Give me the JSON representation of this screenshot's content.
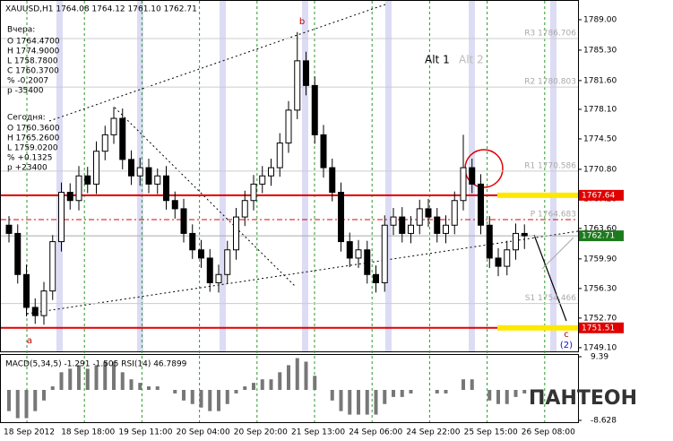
{
  "chart_data": {
    "type": "candlestick",
    "info": {
      "header": "XAUUSD,H1  1764.08 1764.12 1761.10 1762.71",
      "yesterday_label": "Вчера:",
      "yesterday": [
        "O 1764.4700",
        "H 1774.9000",
        "L 1758.7800",
        "C 1760.3700",
        "% -0.2007",
        "p -35400"
      ],
      "today_label": "Сегодня:",
      "today": [
        "O 1760.3600",
        "H 1765.2600",
        "L 1759.0200",
        "% +0.1325",
        "p +23400"
      ]
    },
    "ylim": [
      1748.65,
      1791.4
    ],
    "yticks": [
      {
        "value": 1789.0,
        "label": "1789.00"
      },
      {
        "value": 1785.3,
        "label": "1785.30"
      },
      {
        "value": 1781.6,
        "label": "1781.60"
      },
      {
        "value": 1778.1,
        "label": "1778.10"
      },
      {
        "value": 1774.5,
        "label": "1774.50"
      },
      {
        "value": 1770.8,
        "label": "1770.80"
      },
      {
        "value": 1767.2,
        "label": "1767.20"
      },
      {
        "value": 1763.6,
        "label": "1763.60"
      },
      {
        "value": 1759.9,
        "label": "1759.90"
      },
      {
        "value": 1756.3,
        "label": "1756.30"
      },
      {
        "value": 1752.7,
        "label": "1752.70"
      },
      {
        "value": 1749.1,
        "label": "1749.10"
      }
    ],
    "levels": [
      {
        "value": 1767.64,
        "label": "1767.64",
        "color": "#e00000"
      },
      {
        "value": 1762.71,
        "label": "1762.71",
        "color": "#1e7a1e"
      },
      {
        "value": 1751.51,
        "label": "1751.51",
        "color": "#e00000"
      }
    ],
    "pivots": [
      {
        "name": "R3",
        "value": 1786.706,
        "label": "R3 1786.706"
      },
      {
        "name": "R2",
        "value": 1780.803,
        "label": "R2 1780.803"
      },
      {
        "name": "R1",
        "value": 1770.586,
        "label": "R1 1770.586"
      },
      {
        "name": "P",
        "value": 1764.683,
        "label": "P 1764.683"
      },
      {
        "name": "S1",
        "value": 1754.466,
        "label": "S1 1754.466"
      }
    ],
    "annotations": {
      "alt1": "Alt 1",
      "alt2": "Alt 2",
      "a": "a",
      "b": "b",
      "c": "c",
      "wave": "(2)"
    },
    "xticks": [
      "18 Sep 2012",
      "18 Sep 18:00",
      "19 Sep 11:00",
      "20 Sep 04:00",
      "20 Sep 20:00",
      "21 Sep 13:00",
      "24 Sep 06:00",
      "24 Sep 22:00",
      "25 Sep 15:00",
      "26 Sep 08:00"
    ],
    "open": [
      1764,
      1763,
      1758,
      1754,
      1753,
      1756,
      1762,
      1768,
      1767,
      1770,
      1769,
      1773,
      1775,
      1777,
      1772,
      1770,
      1771,
      1769,
      1770,
      1767,
      1766,
      1763,
      1761,
      1760,
      1757,
      1758,
      1761,
      1765,
      1767,
      1769,
      1770,
      1771,
      1774,
      1778,
      1784,
      1781,
      1775,
      1771,
      1768,
      1762,
      1760,
      1761,
      1758,
      1757,
      1764,
      1765,
      1763,
      1764,
      1766,
      1765,
      1763,
      1764,
      1767,
      1771,
      1769,
      1764,
      1760,
      1759,
      1761,
      1763
    ],
    "high": [
      1765.1,
      1764.1,
      1759.2,
      1755.1,
      1757.1,
      1762.8,
      1769.2,
      1769.1,
      1771.2,
      1771.1,
      1774.2,
      1776.1,
      1778.4,
      1778.2,
      1773.1,
      1772.2,
      1772.1,
      1770.9,
      1771.2,
      1768.1,
      1767.2,
      1764.1,
      1762.2,
      1761.1,
      1759.2,
      1762.1,
      1766.1,
      1768.2,
      1770.1,
      1771.2,
      1772.1,
      1775.2,
      1779.1,
      1787.5,
      1785.1,
      1782.1,
      1776.2,
      1772.1,
      1769.2,
      1763.1,
      1762.2,
      1762.1,
      1759.1,
      1765.2,
      1766.1,
      1766.2,
      1765.1,
      1767.1,
      1767.2,
      1766.1,
      1765.2,
      1768.1,
      1775.0,
      1772.1,
      1770.2,
      1765.1,
      1761.2,
      1762.1,
      1764.2,
      1764.1
    ],
    "low": [
      1761.9,
      1756.9,
      1752.9,
      1752.0,
      1751.9,
      1754.9,
      1760.8,
      1765.9,
      1765.8,
      1767.9,
      1767.8,
      1771.9,
      1773.9,
      1770.8,
      1768.9,
      1768.8,
      1767.9,
      1767.8,
      1765.9,
      1764.8,
      1761.9,
      1759.9,
      1758.8,
      1755.9,
      1755.8,
      1756.9,
      1759.8,
      1763.9,
      1765.8,
      1767.9,
      1768.8,
      1769.9,
      1772.8,
      1776.9,
      1779.8,
      1773.9,
      1769.8,
      1766.9,
      1760.8,
      1758.9,
      1758.8,
      1756.9,
      1755.8,
      1755.9,
      1762.8,
      1761.9,
      1761.8,
      1762.9,
      1763.8,
      1761.9,
      1761.8,
      1762.9,
      1765.8,
      1767.9,
      1762.9,
      1758.8,
      1757.8,
      1757.9,
      1759.8,
      1761.1
    ],
    "close": [
      1763,
      1758,
      1754,
      1753,
      1756,
      1762,
      1768,
      1767,
      1770,
      1769,
      1773,
      1775,
      1777,
      1772,
      1770,
      1771,
      1769,
      1770,
      1767,
      1766,
      1763,
      1761,
      1760,
      1757,
      1758,
      1761,
      1765,
      1767,
      1769,
      1770,
      1771,
      1774,
      1778,
      1784,
      1781,
      1775,
      1771,
      1768,
      1762,
      1760,
      1761,
      1758,
      1757,
      1764,
      1765,
      1763,
      1764,
      1766,
      1765,
      1763,
      1764,
      1767,
      1771,
      1769,
      1764,
      1760,
      1759,
      1761,
      1763,
      1762.71
    ],
    "macd": {
      "title": "MACD(5,34,5) -1.291 -1.505  RSI(14) 46.7899",
      "ylim": [
        -8.628,
        9.39
      ],
      "yticks": [
        {
          "value": 9.39,
          "label": "9.39"
        },
        {
          "value": -8.628,
          "label": "-8.628"
        }
      ],
      "values": [
        -6,
        -8,
        -8,
        -6,
        -3,
        1,
        5,
        6,
        7,
        6,
        7,
        8,
        8,
        5,
        3,
        2,
        1,
        1,
        0,
        -1,
        -3,
        -4,
        -5,
        -6,
        -6,
        -4,
        -1,
        1,
        2,
        3,
        3,
        5,
        7,
        9,
        8,
        4,
        0,
        -3,
        -6,
        -7,
        -7,
        -7,
        -7,
        -4,
        -2,
        -2,
        -1,
        0,
        0,
        -1,
        -1,
        0,
        3,
        3,
        0,
        -3,
        -4,
        -4,
        -2,
        -1
      ]
    },
    "logo": "ПАНТЕОН"
  }
}
